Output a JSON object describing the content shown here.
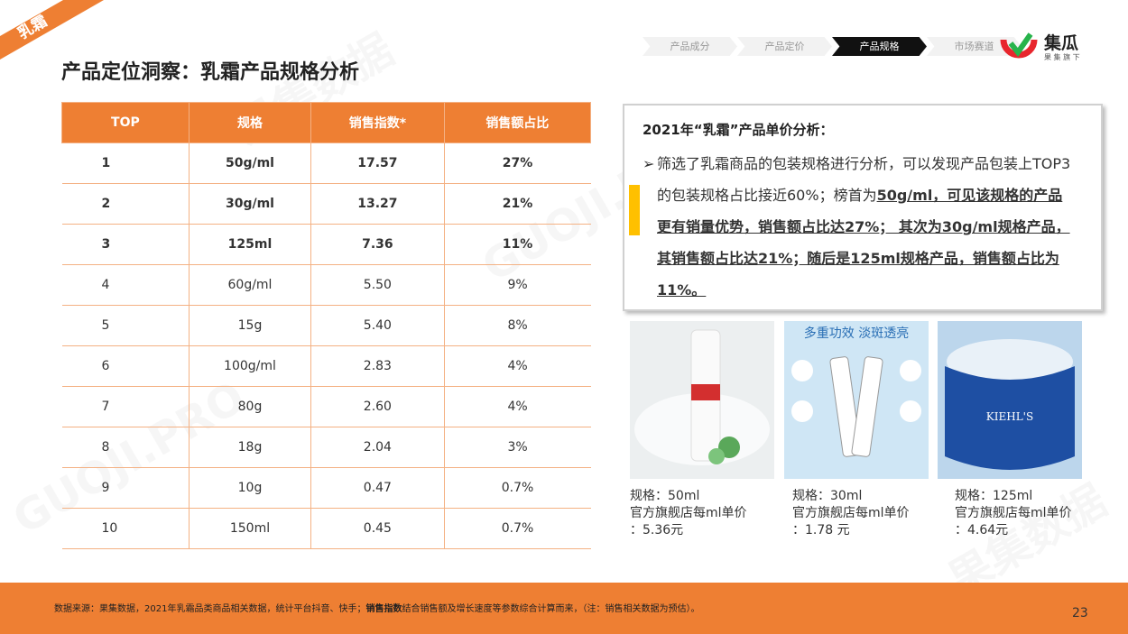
{
  "corner_tag": "乳霜",
  "title": "产品定位洞察：乳霜产品规格分析",
  "nav": [
    "产品成分",
    "产品定价",
    "产品规格",
    "市场赛道"
  ],
  "logo": {
    "name": "集瓜",
    "sub": "果 集 旗 下"
  },
  "watermark": [
    "果集数据",
    "GUOJI.PRO"
  ],
  "table": {
    "headers": [
      "TOP",
      "规格",
      "销售指数*",
      "销售额占比"
    ],
    "rows": [
      [
        "1",
        "50g/ml",
        "17.57",
        "27%"
      ],
      [
        "2",
        "30g/ml",
        "13.27",
        "21%"
      ],
      [
        "3",
        "125ml",
        "7.36",
        "11%"
      ],
      [
        "4",
        "60g/ml",
        "5.50",
        "9%"
      ],
      [
        "5",
        "15g",
        "5.40",
        "8%"
      ],
      [
        "6",
        "100g/ml",
        "2.83",
        "4%"
      ],
      [
        "7",
        "80g",
        "2.60",
        "4%"
      ],
      [
        "8",
        "18g",
        "2.04",
        "3%"
      ],
      [
        "9",
        "10g",
        "0.47",
        "0.7%"
      ],
      [
        "10",
        "150ml",
        "0.45",
        "0.7%"
      ]
    ]
  },
  "analysis": {
    "heading": "2021年“乳霜”产品单价分析：",
    "plain": "筛选了乳霜商品的包装规格进行分析，可以发现产品包装上TOP3的包装规格占比接近60%；榜首为",
    "bold": "50g/ml，可见该规格的产品更有销量优势，销售额占比达27%； 其次为30g/ml规格产品，其销售额占比达21%；随后是125ml规格产品，销售额占比为11%。"
  },
  "products": [
    {
      "spec": "规格：50ml",
      "price_label": "官方旗舰店每ml单价",
      "price": "：5.36元"
    },
    {
      "spec": "规格：30ml",
      "price_label": "官方旗舰店每ml单价",
      "price": "：1.78 元"
    },
    {
      "spec": "规格：125ml",
      "price_label": "官方旗舰店每ml单价",
      "price": "：4.64元"
    }
  ],
  "footer": {
    "source": "数据来源：果集数据，2021年乳霜品类商品相关数据，统计平台抖音、快手；",
    "bold": "销售指数",
    "rest": "结合销售额及增长速度等参数综合计算而来，（注：销售相关数据为预估）。"
  },
  "page_number": "23"
}
